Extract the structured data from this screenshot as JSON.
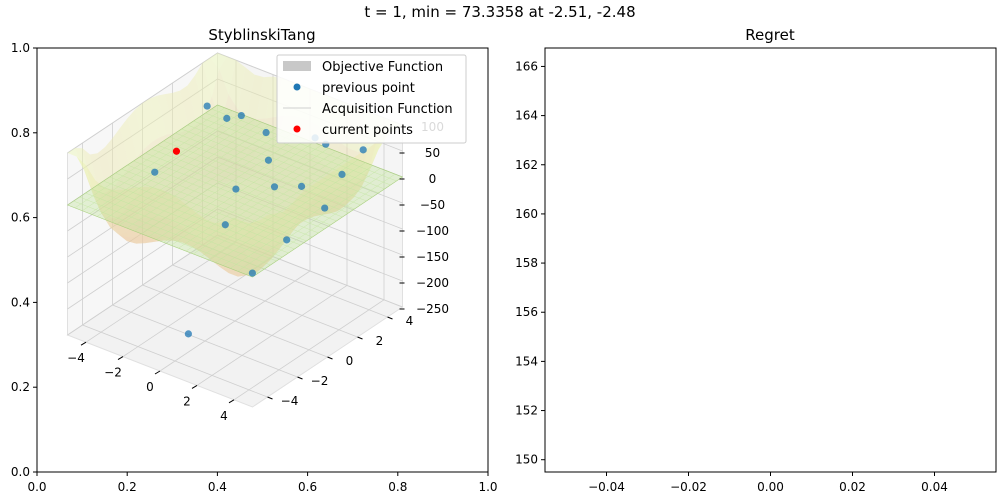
{
  "figure": {
    "suptitle": "t = 1, min = 73.3358 at -2.51, -2.48"
  },
  "chart_data": [
    {
      "type": "scatter",
      "subtype": "3d-surface",
      "title": "StyblinskiTang",
      "outer_axes": {
        "x_ticks": [
          "0.0",
          "0.2",
          "0.4",
          "0.6",
          "0.8",
          "1.0"
        ],
        "y_ticks": [
          "0.0",
          "0.2",
          "0.4",
          "0.6",
          "0.8",
          "1.0"
        ]
      },
      "axes3d": {
        "x_ticks": [
          "−4",
          "−2",
          "0",
          "2",
          "4"
        ],
        "y_ticks": [
          "−4",
          "−2",
          "0",
          "2",
          "4"
        ],
        "z_ticks": [
          "100",
          "50",
          "0",
          "−50",
          "−100",
          "−150",
          "−200",
          "−250"
        ],
        "xlim": [
          -5,
          5
        ],
        "ylim": [
          -5,
          5
        ],
        "zlim": [
          -250,
          100
        ]
      },
      "legend": {
        "placement": "upper right",
        "entries": [
          {
            "label": "Objective Function",
            "kind": "patch",
            "color": "#c8c8c8"
          },
          {
            "label": "previous point",
            "kind": "marker",
            "color": "#1f77b4"
          },
          {
            "label": "Acquisition Function",
            "kind": "line",
            "color": "#d0d0d0"
          },
          {
            "label": "current points",
            "kind": "marker",
            "color": "#ff0000"
          }
        ]
      },
      "series": [
        {
          "name": "previous point",
          "color": "#1f77b4",
          "points": [
            {
              "x": -4.1,
              "y": 3.2,
              "z": 45
            },
            {
              "x": -3.2,
              "y": 3.4,
              "z": 30
            },
            {
              "x": -2.9,
              "y": 4.0,
              "z": 28
            },
            {
              "x": -1.4,
              "y": 3.8,
              "z": 20
            },
            {
              "x": 0.6,
              "y": 4.6,
              "z": 22
            },
            {
              "x": 1.5,
              "y": 4.2,
              "z": 30
            },
            {
              "x": 3.2,
              "y": 4.6,
              "z": 35
            },
            {
              "x": 4.0,
              "y": 2.2,
              "z": 45
            },
            {
              "x": 4.2,
              "y": 0.8,
              "z": 10
            },
            {
              "x": 2.3,
              "y": 1.6,
              "z": 10
            },
            {
              "x": 1.0,
              "y": 1.4,
              "z": -5
            },
            {
              "x": -0.3,
              "y": 2.6,
              "z": 5
            },
            {
              "x": -0.6,
              "y": 0.8,
              "z": -20
            },
            {
              "x": -0.2,
              "y": -0.4,
              "z": -60
            },
            {
              "x": 2.4,
              "y": -1.8,
              "z": -90
            },
            {
              "x": 3.2,
              "y": -0.5,
              "z": -40
            },
            {
              "x": -4.5,
              "y": 0.2,
              "z": -30
            },
            {
              "x": 0.4,
              "y": -3.6,
              "z": -200
            }
          ]
        },
        {
          "name": "current points",
          "color": "#ff0000",
          "points": [
            {
              "x": -4.3,
              "y": 1.4,
              "z": -10
            }
          ]
        }
      ]
    },
    {
      "type": "line",
      "title": "Regret",
      "xlabel": "",
      "ylabel": "",
      "xlim": [
        -0.055,
        0.055
      ],
      "ylim": [
        149.5,
        166.75
      ],
      "x_ticks": [
        "−0.04",
        "−0.02",
        "0.00",
        "0.02",
        "0.04"
      ],
      "y_ticks": [
        "150",
        "152",
        "154",
        "156",
        "158",
        "160",
        "162",
        "164",
        "166"
      ],
      "series": []
    }
  ]
}
